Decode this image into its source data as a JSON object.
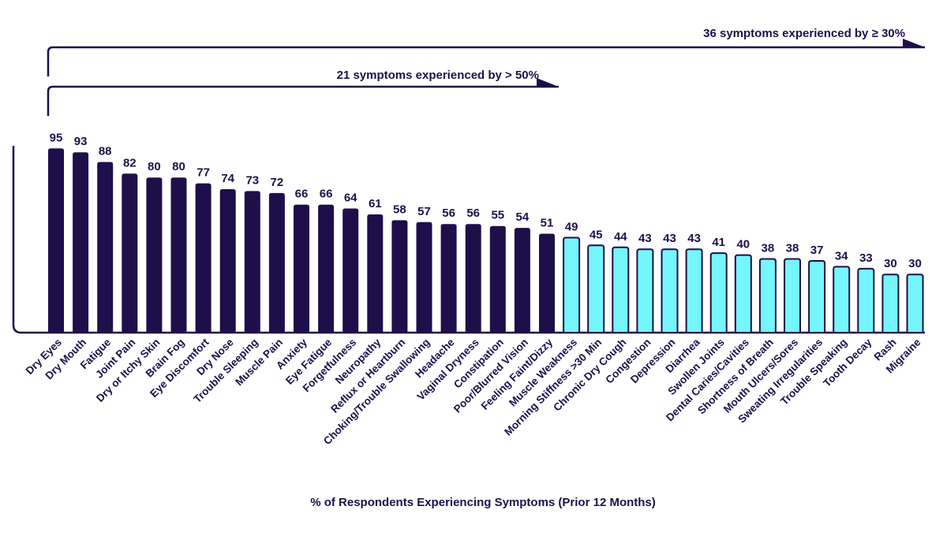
{
  "chart_data": {
    "type": "bar",
    "xlabel": "% of Respondents Experiencing Symptoms (Prior 12 Months)",
    "ylabel": "",
    "ylim": [
      0,
      100
    ],
    "grid": false,
    "categories": [
      "Dry Eyes",
      "Dry Mouth",
      "Fatigue",
      "Joint Pain",
      "Dry or Itchy Skin",
      "Brain Fog",
      "Eye Discomfort",
      "Dry Nose",
      "Trouble Sleeping",
      "Muscle Pain",
      "Anxiety",
      "Eye Fatigue",
      "Forgetfulness",
      "Neuropathy",
      "Reflux or Heartburn",
      "Choking/Trouble Swallowing",
      "Headache",
      "Vaginal Dryness",
      "Constipation",
      "Poor/Blurred Vision",
      "Feeling Faint/Dizzy",
      "Muscle Weakness",
      "Morning Stiffness >30 Min",
      "Chronic Dry Cough",
      "Congestion",
      "Depression",
      "Diarrhea",
      "Swollen Joints",
      "Dental Caries/Cavities",
      "Shortness of Breath",
      "Mouth Ulcers/Sores",
      "Sweating Irregularities",
      "Trouble Speaking",
      "Tooth Decay",
      "Rash",
      "Migraine"
    ],
    "values": [
      95,
      93,
      88,
      82,
      80,
      80,
      77,
      74,
      73,
      72,
      66,
      66,
      64,
      61,
      58,
      57,
      56,
      56,
      55,
      54,
      51,
      49,
      45,
      44,
      43,
      43,
      43,
      41,
      40,
      38,
      38,
      37,
      34,
      33,
      30,
      30
    ],
    "colors": {
      "above_50": "#1e0f4a",
      "30_to_50": "#74f6fa",
      "outline": "#1e0f4a"
    },
    "annotations": [
      {
        "text": "36 symptoms experienced by ≥ 30%",
        "span_count": 36
      },
      {
        "text": "21 symptoms experienced by > 50%",
        "span_count": 21
      }
    ]
  }
}
